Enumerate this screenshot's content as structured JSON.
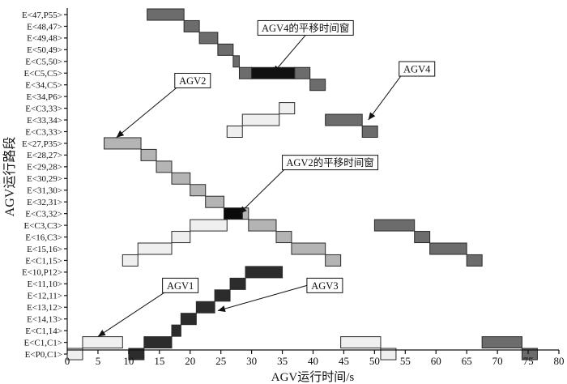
{
  "chart_data": {
    "type": "bar",
    "orientation": "horizontal-gantt",
    "xlabel": "AGV运行时间/s",
    "ylabel": "AGV运行路段",
    "xlim": [
      0,
      80
    ],
    "xticks": [
      0,
      5,
      10,
      15,
      20,
      25,
      30,
      35,
      40,
      45,
      50,
      55,
      60,
      65,
      70,
      75,
      80
    ],
    "categories": [
      "E<47,P55>",
      "E<48,47>",
      "E<49,48>",
      "E<50,49>",
      "E<C5,50>",
      "E<C5,C5>",
      "E<34,C5>",
      "E<34,P6>",
      "E<C3,33>",
      "E<33,34>",
      "E<C3,33>",
      "E<27,P35>",
      "E<28,27>",
      "E<29,28>",
      "E<30,29>",
      "E<31,30>",
      "E<32,31>",
      "E<C3,32>",
      "E<C3,C3>",
      "E<16,C3>",
      "E<15,16>",
      "E<C1,15>",
      "E<10,P12>",
      "E<11,10>",
      "E<12,11>",
      "E<13,12>",
      "E<14,13>",
      "E<C1,14>",
      "E<C1,C1>",
      "E<P0,C1>"
    ],
    "colors": {
      "AGV1": "#efefef",
      "AGV2": "#b4b4b4",
      "AGV3": "#2c2c2c",
      "AGV4": "#6c6c6c",
      "AGV2-shift": "#0a0a0a",
      "AGV4-shift": "#111111"
    },
    "series": [
      {
        "name": "AGV1",
        "segments": [
          {
            "row": 29,
            "start": 0,
            "end": 2.5
          },
          {
            "row": 28,
            "start": 2.5,
            "end": 9
          },
          {
            "row": 21,
            "start": 9,
            "end": 11.5
          },
          {
            "row": 20,
            "start": 11.5,
            "end": 17
          },
          {
            "row": 19,
            "start": 17,
            "end": 20
          },
          {
            "row": 18,
            "start": 20,
            "end": 26
          },
          {
            "row": 28,
            "start": 44.5,
            "end": 51
          },
          {
            "row": 29,
            "start": 51,
            "end": 53.5
          },
          {
            "row": 10,
            "start": 26,
            "end": 28.5
          },
          {
            "row": 9,
            "start": 28.5,
            "end": 34.5
          },
          {
            "row": 8,
            "start": 34.5,
            "end": 37
          }
        ]
      },
      {
        "name": "AGV2",
        "segments": [
          {
            "row": 11,
            "start": 6,
            "end": 12
          },
          {
            "row": 12,
            "start": 12,
            "end": 14.5
          },
          {
            "row": 13,
            "start": 14.5,
            "end": 17
          },
          {
            "row": 14,
            "start": 17,
            "end": 20
          },
          {
            "row": 15,
            "start": 20,
            "end": 22.5
          },
          {
            "row": 16,
            "start": 22.5,
            "end": 25.5
          },
          {
            "row": 17,
            "start": 28.5,
            "end": 29.5
          },
          {
            "row": 18,
            "start": 29.5,
            "end": 34
          },
          {
            "row": 19,
            "start": 34,
            "end": 36.5
          },
          {
            "row": 20,
            "start": 36.5,
            "end": 42
          },
          {
            "row": 21,
            "start": 42,
            "end": 44.5
          }
        ]
      },
      {
        "name": "AGV2的平移时间窗",
        "segments": [
          {
            "row": 17,
            "start": 25.5,
            "end": 28.5
          }
        ]
      },
      {
        "name": "AGV3",
        "segments": [
          {
            "row": 29,
            "start": 10,
            "end": 12.5
          },
          {
            "row": 28,
            "start": 12.5,
            "end": 17
          },
          {
            "row": 27,
            "start": 17,
            "end": 18.5
          },
          {
            "row": 26,
            "start": 18.5,
            "end": 21
          },
          {
            "row": 25,
            "start": 21,
            "end": 24
          },
          {
            "row": 24,
            "start": 24,
            "end": 26.5
          },
          {
            "row": 23,
            "start": 26.5,
            "end": 29
          },
          {
            "row": 22,
            "start": 29,
            "end": 35
          }
        ]
      },
      {
        "name": "AGV4",
        "segments": [
          {
            "row": 0,
            "start": 13,
            "end": 19
          },
          {
            "row": 1,
            "start": 19,
            "end": 21.5
          },
          {
            "row": 2,
            "start": 21.5,
            "end": 24.5
          },
          {
            "row": 3,
            "start": 24.5,
            "end": 27
          },
          {
            "row": 4,
            "start": 27,
            "end": 28
          },
          {
            "row": 5,
            "start": 28,
            "end": 30
          },
          {
            "row": 5,
            "start": 37,
            "end": 39.5
          },
          {
            "row": 6,
            "start": 39.5,
            "end": 42
          },
          {
            "row": 9,
            "start": 42,
            "end": 48
          },
          {
            "row": 10,
            "start": 48,
            "end": 50.5
          },
          {
            "row": 18,
            "start": 50,
            "end": 56.5
          },
          {
            "row": 19,
            "start": 56.5,
            "end": 59
          },
          {
            "row": 20,
            "start": 59,
            "end": 65
          },
          {
            "row": 21,
            "start": 65,
            "end": 67.5
          },
          {
            "row": 28,
            "start": 67.5,
            "end": 74
          },
          {
            "row": 29,
            "start": 74,
            "end": 76.5
          }
        ]
      },
      {
        "name": "AGV4的平移时间窗",
        "segments": [
          {
            "row": 5,
            "start": 30,
            "end": 37
          }
        ]
      }
    ],
    "annotations": [
      {
        "text": "AGV4的平移时间窗",
        "box_at": [
          31,
          1
        ],
        "arrow_to": [
          33.5,
          5
        ]
      },
      {
        "text": "AGV4",
        "box_at": [
          54,
          4.5
        ],
        "arrow_to": [
          49,
          9
        ]
      },
      {
        "text": "AGV2",
        "box_at": [
          17.5,
          5.5
        ],
        "arrow_to": [
          8,
          10.5
        ]
      },
      {
        "text": "AGV2的平移时间窗",
        "box_at": [
          35,
          12.5
        ],
        "arrow_to": [
          28,
          17
        ]
      },
      {
        "text": "AGV1",
        "box_at": [
          15.5,
          23
        ],
        "arrow_to": [
          5,
          27.5
        ]
      },
      {
        "text": "AGV3",
        "box_at": [
          39,
          23
        ]
      }
    ],
    "grid": false,
    "legend": "none"
  }
}
